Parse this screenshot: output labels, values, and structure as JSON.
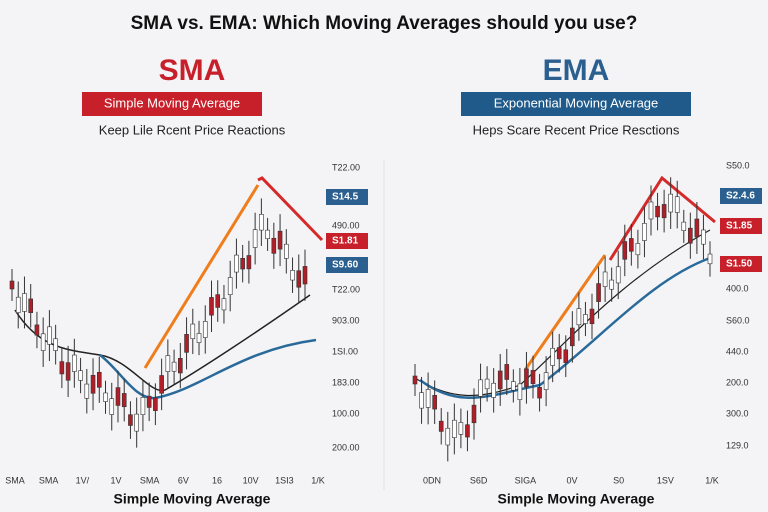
{
  "header": {
    "title": "SMA vs. EMA: Which Moving Averages should you use?"
  },
  "panels": [
    {
      "heading": "SMA",
      "subtitle": "Simple Moving Average",
      "description": "Keep Lile Rcent Price Reactions",
      "axis_labels": [
        "T22.00",
        "S14.5",
        "490.00",
        "S1.81",
        "S9.60",
        "T22.00",
        "903.00",
        "1SI.00",
        "183.00",
        "100.00",
        "200.00"
      ],
      "x_labels": [
        "SMA",
        "SMA",
        "1V/",
        "1V",
        "SMA",
        "6V",
        "16",
        "10V",
        "1SI3",
        "1/K"
      ],
      "caption": "Simple Moving Average"
    },
    {
      "heading": "EMA",
      "subtitle": "Exponential Moving Average",
      "description": "Heps Scare Recent Price Resctions",
      "axis_labels": [
        "S50.0",
        "S2.4.6",
        "S1.85",
        "S1.50",
        "400.0",
        "S60.0",
        "440.0",
        "200.0",
        "300.0",
        "129.0"
      ],
      "x_labels": [
        "0DN",
        "S6D",
        "SIGA",
        "0V",
        "S0",
        "1SV",
        "1/K"
      ],
      "caption": "Simple Moving Average"
    }
  ]
}
